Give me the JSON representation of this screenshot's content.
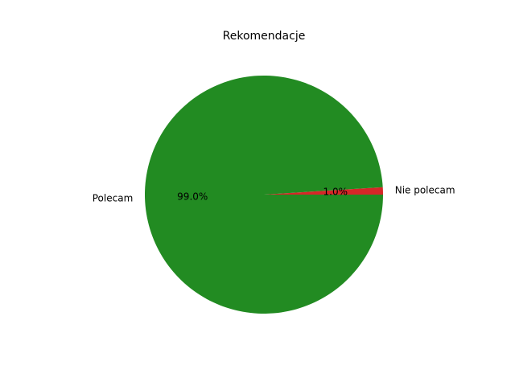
{
  "chart_data": {
    "type": "pie",
    "title": "Rekomendacje",
    "slices": [
      {
        "label": "Nie polecam",
        "value": 1.0,
        "pct_label": "1.0%",
        "color": "#d62728"
      },
      {
        "label": "Polecam",
        "value": 99.0,
        "pct_label": "99.0%",
        "color": "#228b22"
      }
    ]
  }
}
